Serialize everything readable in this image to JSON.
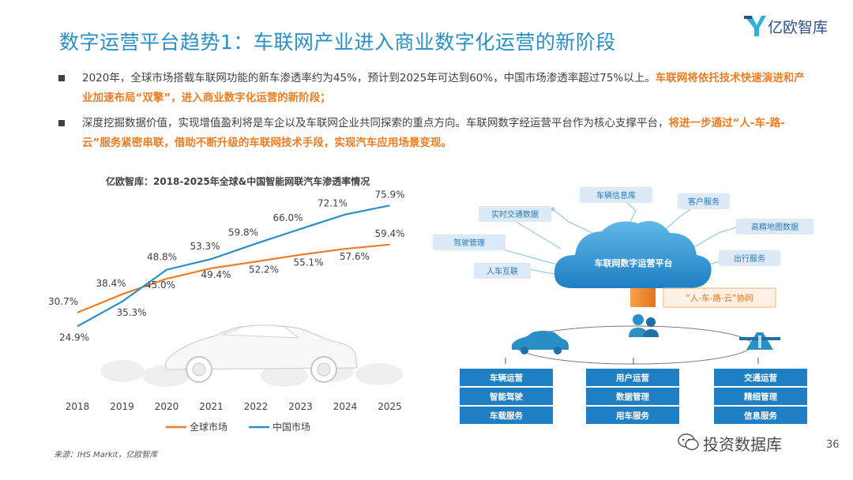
{
  "title": "数字运营平台趋势1：车联网产业进入商业数字化运营的新阶段",
  "brand": {
    "name": "亿欧智库",
    "accent": "#2a8fc4",
    "orange": "#ec7d24",
    "blue_dark": "#2a4f86"
  },
  "bullets": [
    {
      "normal": "2020年，全球市场搭载车联网功能的新车渗透率约为45%，预计到2025年可达到60%，中国市场渗透率超过75%以上。",
      "highlight": "车联网将依托技术快速演进和产业加速布局“双擎”，进入商业数字化运营的新阶段；"
    },
    {
      "normal": "深度挖掘数据价值，实现增值盈利将是车企以及车联网企业共同探索的重点方向。车联网数字经运营平台作为核心支撑平台，",
      "highlight": "将进一步通过“人-车-路-云”服务紧密串联，借助不断升级的车联网技术手段，实现汽车应用场景变现。"
    }
  ],
  "chart_data": {
    "type": "line",
    "title": "亿欧智库：2018-2025年全球&中国智能网联汽车渗透率情况",
    "categories": [
      "2018",
      "2019",
      "2020",
      "2021",
      "2022",
      "2023",
      "2024",
      "2025"
    ],
    "series": [
      {
        "name": "全球市场",
        "color": "#ec7d24",
        "values": [
          30.7,
          38.4,
          45.0,
          49.4,
          52.2,
          55.1,
          57.6,
          59.4
        ],
        "labels": [
          "30.7%",
          "38.4%",
          "45.0%",
          "49.4%",
          "52.2%",
          "55.1%",
          "57.6%",
          "59.4%"
        ]
      },
      {
        "name": "中国市场",
        "color": "#2a8fc4",
        "values": [
          24.9,
          35.3,
          48.8,
          53.3,
          59.8,
          66.0,
          72.1,
          75.9
        ],
        "labels": [
          "24.9%",
          "35.3%",
          "48.8%",
          "53.3%",
          "59.8%",
          "66.0%",
          "72.1%",
          "75.9%"
        ]
      }
    ],
    "ylim": [
      20,
      80
    ],
    "ylabel": "",
    "xlabel": "",
    "legend": "bottom",
    "grid": false
  },
  "diagram": {
    "cloud_label": "车联网数字运营平台",
    "tags": [
      "车辆信息库",
      "客户服务",
      "实时交通数据",
      "高精地图数据",
      "驾驶管理",
      "出行服务",
      "人车互联"
    ],
    "collab_label": "“人-车-路-云”协同",
    "columns": [
      {
        "items": [
          "车辆运营",
          "智能驾驶",
          "车载服务"
        ]
      },
      {
        "items": [
          "用户运营",
          "数据管理",
          "用车服务"
        ]
      },
      {
        "items": [
          "交通运营",
          "精细管理",
          "信息服务"
        ]
      }
    ]
  },
  "source": "来源：IHS Markit，亿欧智库",
  "watermark": "投资数据库",
  "page_number": "36"
}
